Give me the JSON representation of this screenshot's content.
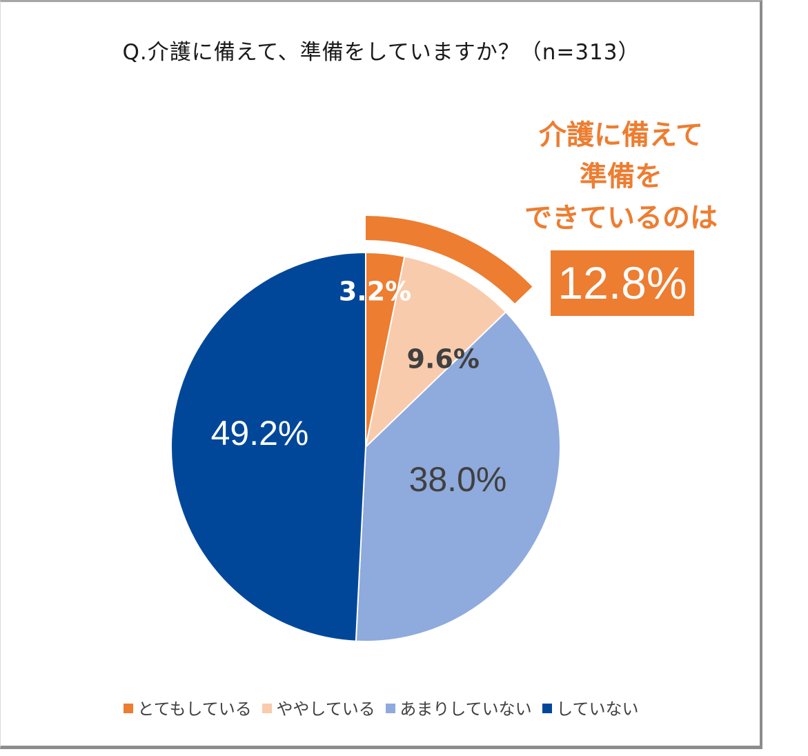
{
  "chart_data": {
    "type": "pie",
    "title": "Q.介護に備えて、準備をしていますか？（n=313）",
    "categories": [
      "とてもしている",
      "ややしている",
      "あまりしていない",
      "していない"
    ],
    "values": [
      3.2,
      9.6,
      38.0,
      49.2
    ],
    "labels": [
      "3.2%",
      "9.6%",
      "38.0%",
      "49.2%"
    ],
    "colors": [
      "#ed7d31",
      "#f8cbad",
      "#8faadc",
      "#00479a"
    ],
    "label_colors": [
      "#ffffff",
      "#404040",
      "#404040",
      "#ffffff"
    ],
    "legend_position": "bottom",
    "annotation": {
      "lines": [
        "介護に備えて",
        "準備を",
        "できているのは"
      ],
      "value": "12.8%",
      "color": "#ed7d31",
      "covers": [
        "とてもしている",
        "ややしている"
      ]
    }
  }
}
